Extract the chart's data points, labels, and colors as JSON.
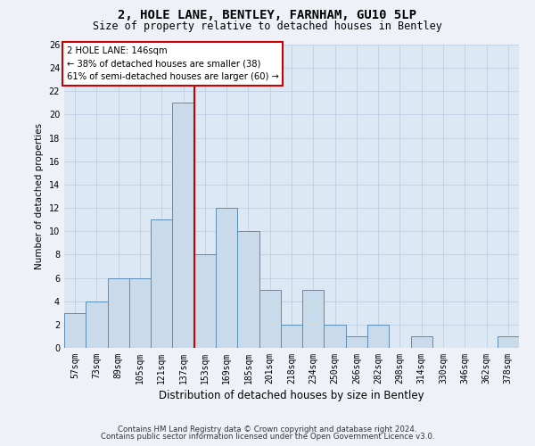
{
  "title": "2, HOLE LANE, BENTLEY, FARNHAM, GU10 5LP",
  "subtitle": "Size of property relative to detached houses in Bentley",
  "xlabel": "Distribution of detached houses by size in Bentley",
  "ylabel": "Number of detached properties",
  "bar_labels": [
    "57sqm",
    "73sqm",
    "89sqm",
    "105sqm",
    "121sqm",
    "137sqm",
    "153sqm",
    "169sqm",
    "185sqm",
    "201sqm",
    "218sqm",
    "234sqm",
    "250sqm",
    "266sqm",
    "282sqm",
    "298sqm",
    "314sqm",
    "330sqm",
    "346sqm",
    "362sqm",
    "378sqm"
  ],
  "bar_values": [
    3,
    4,
    6,
    6,
    11,
    21,
    8,
    12,
    10,
    5,
    2,
    5,
    2,
    1,
    2,
    0,
    1,
    0,
    0,
    0,
    1
  ],
  "bar_color": "#c9daea",
  "bar_edge_color": "#5b8db8",
  "vline_x": 5.5,
  "vline_color": "#cc0000",
  "annotation_line1": "2 HOLE LANE: 146sqm",
  "annotation_line2": "← 38% of detached houses are smaller (38)",
  "annotation_line3": "61% of semi-detached houses are larger (60) →",
  "annotation_box_color": "#cc0000",
  "ylim": [
    0,
    26
  ],
  "yticks": [
    0,
    2,
    4,
    6,
    8,
    10,
    12,
    14,
    16,
    18,
    20,
    22,
    24,
    26
  ],
  "grid_color": "#c0cfe0",
  "plot_bg_color": "#dce8f4",
  "fig_bg_color": "#eef2f8",
  "footer1": "Contains HM Land Registry data © Crown copyright and database right 2024.",
  "footer2": "Contains public sector information licensed under the Open Government Licence v3.0.",
  "title_fontsize": 10,
  "subtitle_fontsize": 8.5,
  "tick_fontsize": 7,
  "ylabel_fontsize": 7.5,
  "xlabel_fontsize": 8.5,
  "footer_fontsize": 6.2
}
